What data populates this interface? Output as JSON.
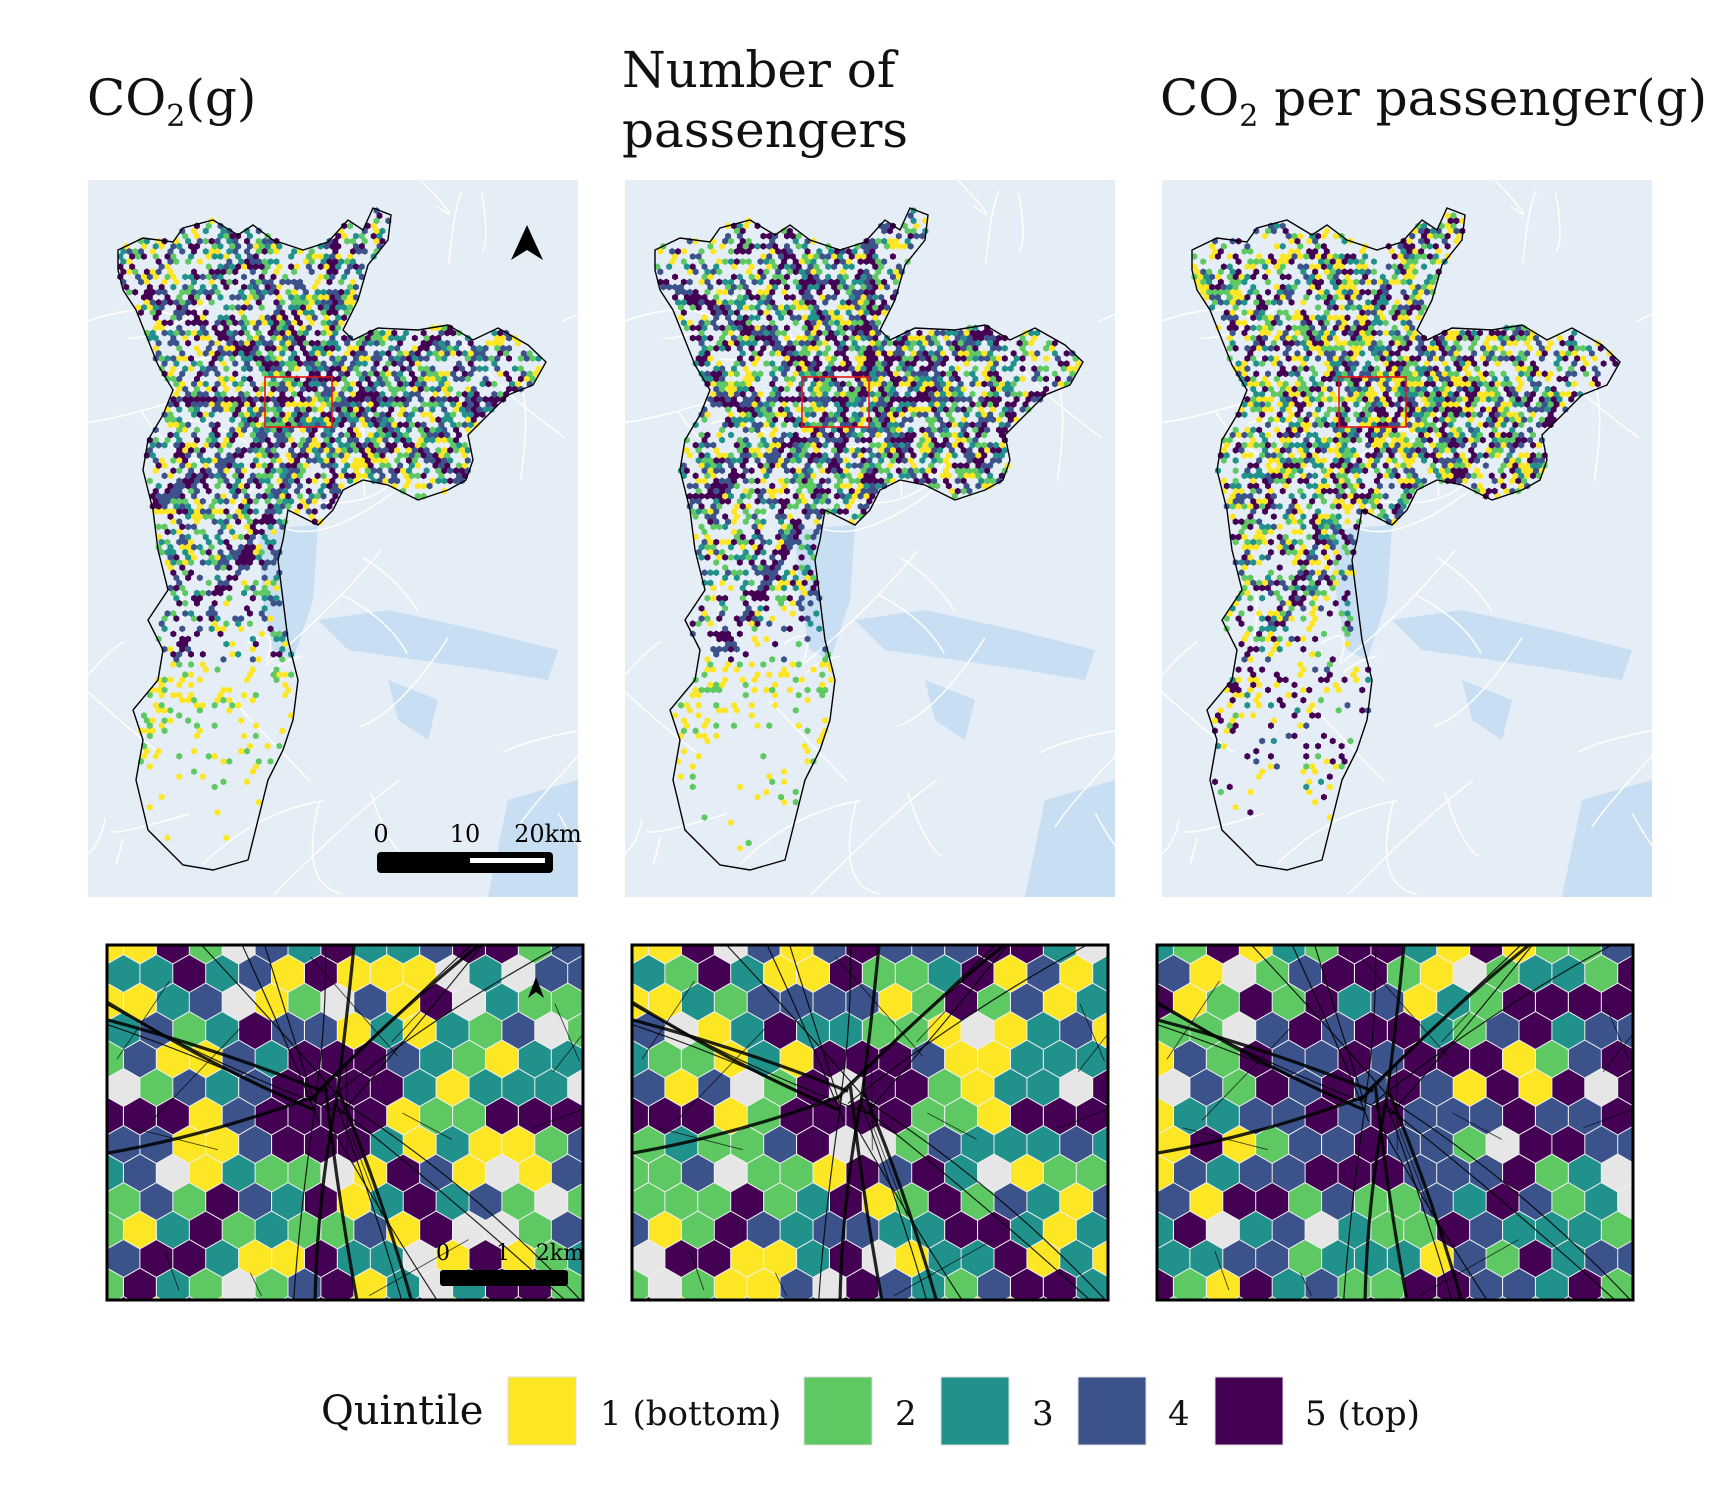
{
  "titles": {
    "co2": {
      "main": "CO",
      "sub": "2",
      "rest": "(g)"
    },
    "passengers": {
      "line1": "Number of",
      "line2": "passengers"
    },
    "co2_per_passenger": {
      "main": "CO",
      "sub": "2",
      "rest": " per passenger(g)"
    }
  },
  "scale_bar_city": {
    "ticks": [
      "0",
      "10",
      "20km"
    ]
  },
  "scale_bar_zoom": {
    "ticks": [
      "0",
      "1",
      "2km"
    ]
  },
  "legend": {
    "title": "Quintile",
    "items": [
      {
        "label": "1 (bottom)",
        "color": "#fde725"
      },
      {
        "label": "2",
        "color": "#5ec962"
      },
      {
        "label": "3",
        "color": "#21918c"
      },
      {
        "label": "4",
        "color": "#3b528b"
      },
      {
        "label": "5 (top)",
        "color": "#440154"
      }
    ]
  },
  "colors": {
    "map_land": "#e5edf6",
    "map_water": "#c4dbf2",
    "map_roads": "#ffffff",
    "boundary": "#000000",
    "zoom_box": "#e0191a",
    "no_data_hex": "#e6e6e6"
  },
  "icons": [
    "north-arrow-icon"
  ]
}
